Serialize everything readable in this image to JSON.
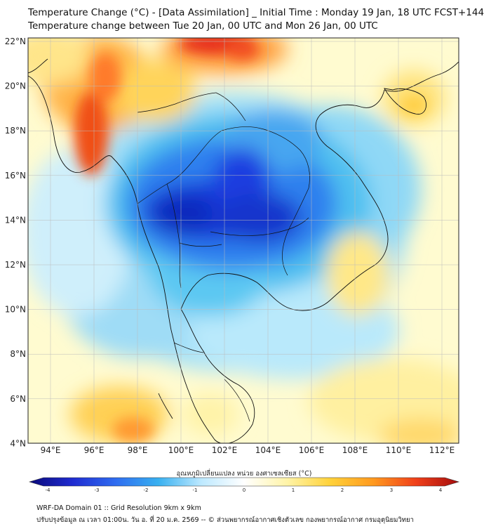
{
  "title_line1": "Temperature Change (°C) - [Data Assimilation] _ Initial Time : Monday 19 Jan, 18 UTC FCST+144",
  "title_line2": "Temperature change between Tue 20 Jan, 00 UTC and Mon 26 Jan, 00 UTC",
  "lat_labels": [
    "22°N",
    "20°N",
    "18°N",
    "16°N",
    "14°N",
    "12°N",
    "10°N",
    "8°N",
    "6°N",
    "4°N"
  ],
  "lon_labels": [
    "94°E",
    "96°E",
    "98°E",
    "100°E",
    "102°E",
    "104°E",
    "106°E",
    "108°E",
    "110°E",
    "112°E"
  ],
  "colorbar": {
    "label": "อุณหภูมิเปลี่ยนแปลง หน่วย องศาเซลเซียส (°C)",
    "ticks": [
      "-4",
      "-3",
      "-2",
      "-1",
      "0",
      "1",
      "2",
      "3",
      "4"
    ],
    "min": -4,
    "max": 4,
    "colors": [
      "#0a0a7a",
      "#1f2bd0",
      "#2f6cf0",
      "#38b0f0",
      "#bde9ff",
      "#ffffff",
      "#fff4a8",
      "#ffd23a",
      "#ff9a1f",
      "#f0401a",
      "#a50d0d"
    ]
  },
  "footer_line1": "WRF-DA Domain 01 :: Grid Resolution 9km x 9km",
  "footer_line2": "ปรับปรุงข้อมูล ณ เวลา 01:00น. วัน อ. ที่ 20 ม.ค. 2569 -- © ส่วนพยากรณ์อากาศเชิงตัวเลข กองพยากรณ์อากาศ กรมอุตุนิยมวิทยา"
}
